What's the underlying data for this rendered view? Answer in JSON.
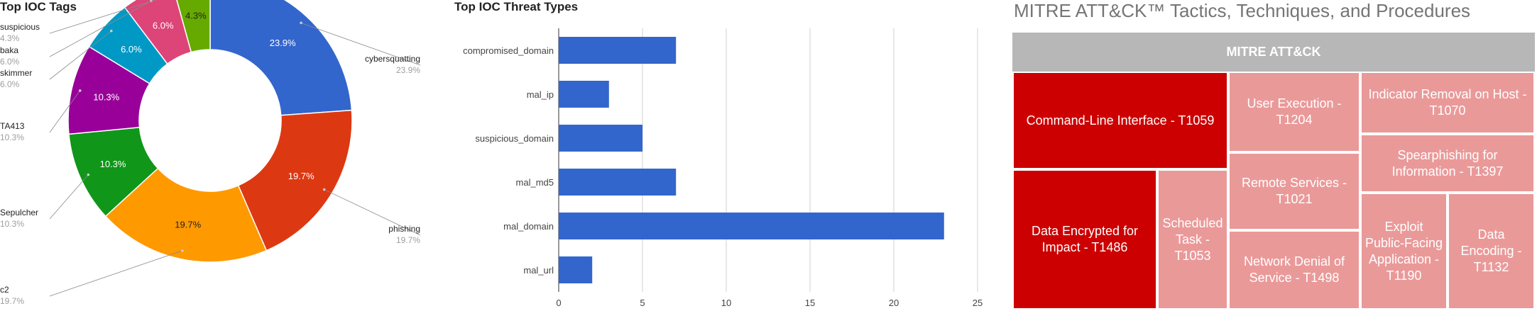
{
  "chart_data": [
    {
      "type": "pie",
      "title": "Top IOC Tags",
      "hole": 0.5,
      "slices": [
        {
          "label": "cybersquatting",
          "value": 23.9,
          "display": "23.9%",
          "color": "#3366cc"
        },
        {
          "label": "phishing",
          "value": 19.7,
          "display": "19.7%",
          "color": "#dc3912"
        },
        {
          "label": "c2",
          "value": 19.7,
          "display": "19.7%",
          "color": "#ff9900"
        },
        {
          "label": "Sepulcher",
          "value": 10.3,
          "display": "10.3%",
          "color": "#109618"
        },
        {
          "label": "TA413",
          "value": 10.3,
          "display": "10.3%",
          "color": "#990099"
        },
        {
          "label": "skimmer",
          "value": 6.0,
          "display": "6.0%",
          "color": "#0099c6"
        },
        {
          "label": "baka",
          "value": 6.0,
          "display": "6.0%",
          "color": "#dd4477"
        },
        {
          "label": "suspicious",
          "value": 4.3,
          "display": "4.3%",
          "color": "#66aa00"
        }
      ]
    },
    {
      "type": "bar",
      "orientation": "horizontal",
      "title": "Top IOC Threat Types",
      "categories": [
        "compromised_domain",
        "mal_ip",
        "suspicious_domain",
        "mal_md5",
        "mal_domain",
        "mal_url"
      ],
      "values": [
        7,
        3,
        5,
        7,
        23,
        2
      ],
      "xlim": [
        0,
        25
      ],
      "xticks": [
        0,
        5,
        10,
        15,
        20,
        25
      ],
      "grid": true,
      "bar_color": "#3366cc"
    },
    {
      "type": "treemap",
      "title": "MITRE ATT&CK™ Tactics, Techniques, and Procedures",
      "root": "MITRE ATT&CK",
      "header_color": "#b7b7b7",
      "nodes": [
        {
          "label": "Command-Line Interface - T1059",
          "color": "#cc0000"
        },
        {
          "label": "Data Encrypted for Impact - T1486",
          "color": "#cc0000"
        },
        {
          "label": "Scheduled Task - T1053",
          "color": "#ea9999"
        },
        {
          "label": "User Execution - T1204",
          "color": "#ea9999"
        },
        {
          "label": "Remote Services - T1021",
          "color": "#ea9999"
        },
        {
          "label": "Network Denial of Service - T1498",
          "color": "#ea9999"
        },
        {
          "label": "Indicator Removal on Host - T1070",
          "color": "#ea9999"
        },
        {
          "label": "Spearphishing for Information - T1397",
          "color": "#ea9999"
        },
        {
          "label": "Exploit Public-Facing Application - T1190",
          "color": "#ea9999"
        },
        {
          "label": "Data Encoding - T1132",
          "color": "#ea9999"
        }
      ]
    }
  ]
}
